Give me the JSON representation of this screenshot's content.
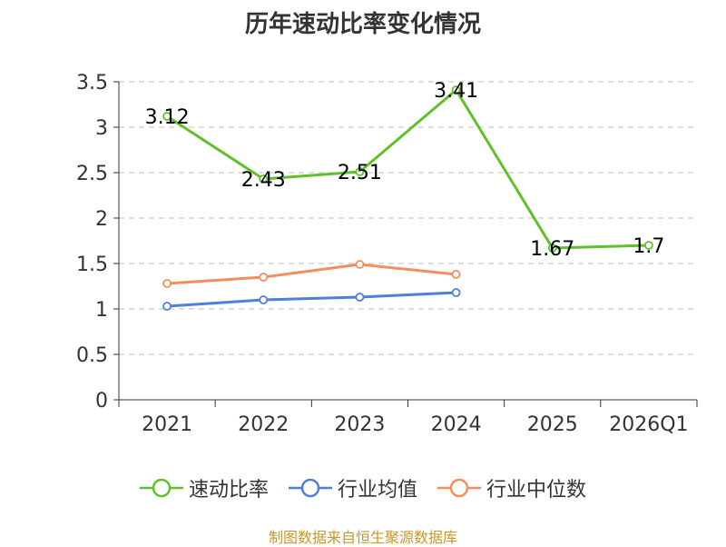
{
  "chart_data": {
    "type": "line",
    "title": "历年速动比率变化情况",
    "categories": [
      "2021",
      "2022",
      "2023",
      "2024",
      "2025",
      "2026Q1"
    ],
    "ylim": [
      0,
      3.5
    ],
    "yticks": [
      "0",
      "0.5",
      "1",
      "1.5",
      "2",
      "2.5",
      "3",
      "3.5"
    ],
    "grid": true,
    "legend_position": "bottom",
    "series": [
      {
        "name": "速动比率",
        "color": "#5fc02a",
        "values": [
          3.12,
          2.43,
          2.51,
          3.41,
          1.67,
          1.7
        ],
        "labels": [
          "3.12",
          "2.43",
          "2.51",
          "3.41",
          "1.67",
          "1.7"
        ]
      },
      {
        "name": "行业均值",
        "color": "#4f7fdc",
        "values": [
          1.03,
          1.1,
          1.13,
          1.18,
          null,
          null
        ]
      },
      {
        "name": "行业中位数",
        "color": "#f68d5c",
        "values": [
          1.28,
          1.35,
          1.49,
          1.38,
          null,
          null
        ]
      }
    ]
  },
  "source": "制图数据来自恒生聚源数据库"
}
